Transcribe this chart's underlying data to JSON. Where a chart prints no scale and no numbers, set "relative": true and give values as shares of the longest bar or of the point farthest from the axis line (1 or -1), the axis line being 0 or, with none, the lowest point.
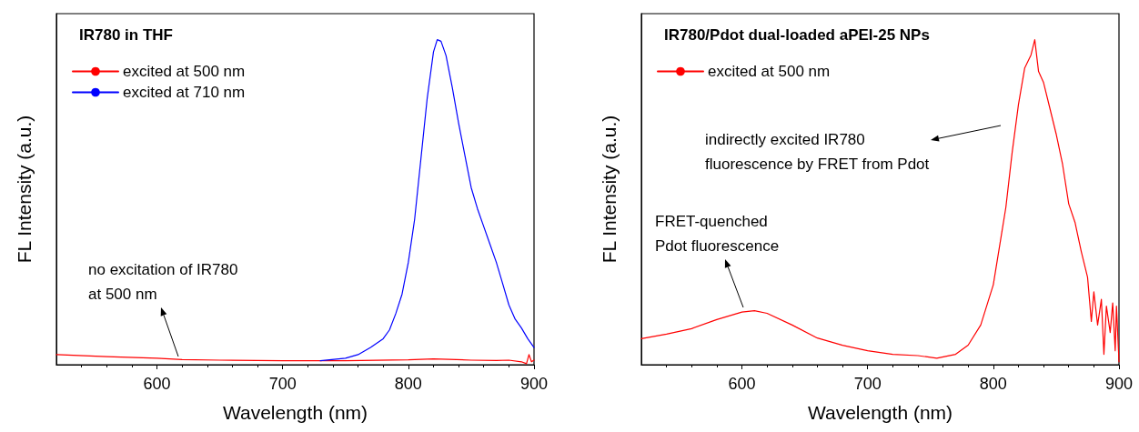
{
  "chart_data": [
    {
      "type": "line",
      "title": "IR780 in THF",
      "xlabel": "Wavelength (nm)",
      "ylabel": "FL Intensity (a.u.)",
      "relative": true,
      "xlim": [
        520,
        900
      ],
      "xticks": [
        600,
        700,
        800,
        900
      ],
      "legend": "top left",
      "marker": "none",
      "line_style": "solid",
      "grid": false,
      "annotations": [
        "no excitation of IR780\nat 500 nm"
      ],
      "series": [
        {
          "name": "excited at 500 nm",
          "color": "#ff0000",
          "x": [
            520,
            560,
            600,
            620,
            650,
            700,
            750,
            800,
            820,
            850,
            870,
            880,
            890,
            894,
            896,
            898,
            900
          ],
          "values": [
            0.031,
            0.025,
            0.02,
            0.016,
            0.014,
            0.012,
            0.012,
            0.015,
            0.018,
            0.014,
            0.013,
            0.014,
            0.009,
            0.003,
            0.031,
            0.009,
            0.014
          ]
        },
        {
          "name": "excited at 710 nm",
          "color": "#0000ff",
          "x": [
            730,
            750,
            760,
            770,
            780,
            785,
            790,
            795,
            800,
            805,
            810,
            815,
            820,
            823,
            826,
            830,
            835,
            840,
            845,
            850,
            855,
            860,
            865,
            870,
            875,
            880,
            885,
            890,
            895,
            900
          ],
          "values": [
            0.012,
            0.02,
            0.031,
            0.053,
            0.08,
            0.107,
            0.157,
            0.217,
            0.315,
            0.447,
            0.633,
            0.819,
            0.962,
            1.0,
            0.995,
            0.951,
            0.852,
            0.743,
            0.644,
            0.545,
            0.48,
            0.425,
            0.37,
            0.315,
            0.25,
            0.184,
            0.14,
            0.113,
            0.08,
            0.053
          ]
        }
      ]
    },
    {
      "type": "line",
      "title": "IR780/Pdot dual-loaded aPEI-25 NPs",
      "xlabel": "Wavelength (nm)",
      "ylabel": "FL Intensity (a.u.)",
      "relative": true,
      "xlim": [
        520,
        900
      ],
      "xticks": [
        600,
        700,
        800,
        900
      ],
      "legend": "top left",
      "marker": "none",
      "line_style": "solid",
      "grid": false,
      "annotations": [
        "FRET-quenched\nPdot fluorescence",
        "indirectly excited IR780\nfluorescence by FRET from Pdot"
      ],
      "series": [
        {
          "name": "excited at 500 nm",
          "color": "#ff0000",
          "x": [
            520,
            540,
            560,
            580,
            600,
            610,
            620,
            640,
            660,
            680,
            700,
            720,
            740,
            755,
            770,
            780,
            790,
            800,
            810,
            815,
            820,
            825,
            830,
            833,
            836,
            840,
            845,
            850,
            855,
            860,
            865,
            870,
            875,
            878,
            880,
            883,
            886,
            888,
            890,
            893,
            895,
            897,
            898,
            900
          ],
          "values": [
            0.08,
            0.094,
            0.111,
            0.139,
            0.162,
            0.166,
            0.158,
            0.122,
            0.082,
            0.06,
            0.043,
            0.032,
            0.028,
            0.02,
            0.032,
            0.06,
            0.122,
            0.246,
            0.484,
            0.653,
            0.8,
            0.913,
            0.953,
            1.0,
            0.902,
            0.868,
            0.789,
            0.71,
            0.619,
            0.495,
            0.438,
            0.348,
            0.269,
            0.133,
            0.224,
            0.122,
            0.201,
            0.032,
            0.18,
            0.099,
            0.19,
            0.043,
            0.18,
            0.009
          ]
        }
      ]
    }
  ]
}
